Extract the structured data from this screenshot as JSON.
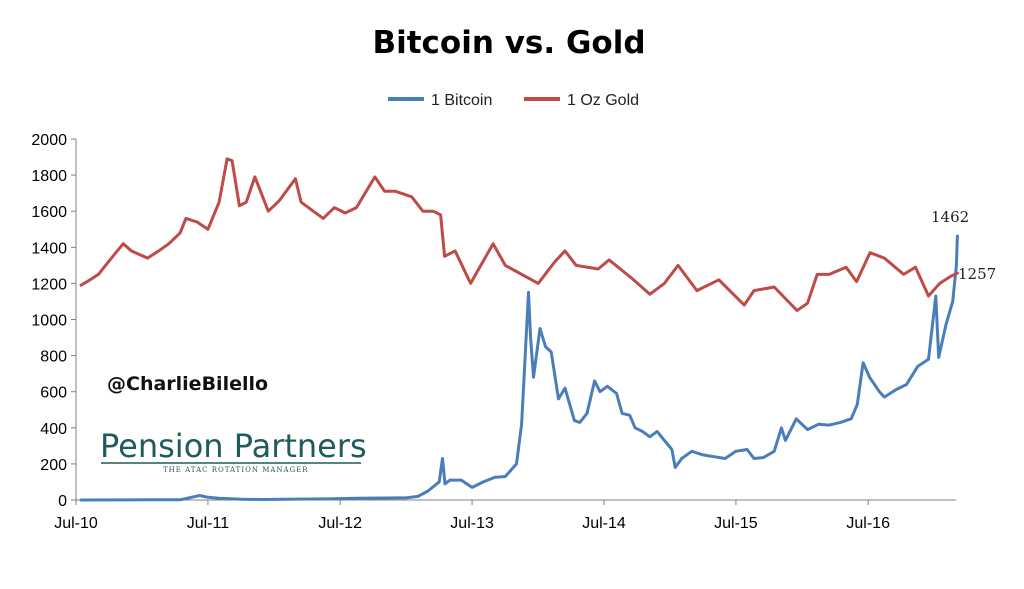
{
  "chart_data": {
    "type": "line",
    "title": "Bitcoin vs. Gold",
    "xlabel": "",
    "ylabel": "",
    "ylim": [
      0,
      2000
    ],
    "yticks": [
      0,
      200,
      400,
      600,
      800,
      1000,
      1200,
      1400,
      1600,
      1800,
      2000
    ],
    "xlim": [
      "2010-07",
      "2017-03"
    ],
    "xticks": [
      "Jul-10",
      "Jul-11",
      "Jul-12",
      "Jul-13",
      "Jul-14",
      "Jul-15",
      "Jul-16"
    ],
    "grid": false,
    "legend_position": "top-center",
    "series": [
      {
        "name": "1 Bitcoin",
        "color": "#4a7ebb",
        "end_label": "1462",
        "points": [
          [
            "2010-07-15",
            0.1
          ],
          [
            "2010-11-01",
            0.3
          ],
          [
            "2011-02-01",
            1
          ],
          [
            "2011-04-15",
            1
          ],
          [
            "2011-06-08",
            25
          ],
          [
            "2011-07-01",
            15
          ],
          [
            "2011-08-01",
            10
          ],
          [
            "2011-10-01",
            4
          ],
          [
            "2011-12-01",
            3
          ],
          [
            "2012-03-01",
            5
          ],
          [
            "2012-06-01",
            6
          ],
          [
            "2012-08-15",
            10
          ],
          [
            "2012-11-01",
            11
          ],
          [
            "2013-01-01",
            13
          ],
          [
            "2013-02-01",
            20
          ],
          [
            "2013-03-01",
            50
          ],
          [
            "2013-04-01",
            100
          ],
          [
            "2013-04-10",
            230
          ],
          [
            "2013-04-17",
            90
          ],
          [
            "2013-05-01",
            110
          ],
          [
            "2013-06-01",
            110
          ],
          [
            "2013-07-01",
            70
          ],
          [
            "2013-08-01",
            100
          ],
          [
            "2013-09-01",
            125
          ],
          [
            "2013-10-01",
            130
          ],
          [
            "2013-11-01",
            200
          ],
          [
            "2013-11-15",
            420
          ],
          [
            "2013-11-25",
            800
          ],
          [
            "2013-12-04",
            1150
          ],
          [
            "2013-12-10",
            900
          ],
          [
            "2013-12-18",
            680
          ],
          [
            "2014-01-05",
            950
          ],
          [
            "2014-01-20",
            850
          ],
          [
            "2014-02-05",
            820
          ],
          [
            "2014-02-25",
            560
          ],
          [
            "2014-03-15",
            620
          ],
          [
            "2014-04-10",
            440
          ],
          [
            "2014-04-25",
            430
          ],
          [
            "2014-05-15",
            480
          ],
          [
            "2014-06-05",
            660
          ],
          [
            "2014-06-20",
            600
          ],
          [
            "2014-07-10",
            630
          ],
          [
            "2014-08-05",
            590
          ],
          [
            "2014-08-20",
            480
          ],
          [
            "2014-09-10",
            470
          ],
          [
            "2014-09-25",
            400
          ],
          [
            "2014-10-15",
            380
          ],
          [
            "2014-11-05",
            350
          ],
          [
            "2014-11-25",
            380
          ],
          [
            "2014-12-15",
            330
          ],
          [
            "2015-01-05",
            280
          ],
          [
            "2015-01-14",
            180
          ],
          [
            "2015-02-01",
            230
          ],
          [
            "2015-03-01",
            270
          ],
          [
            "2015-04-01",
            250
          ],
          [
            "2015-05-01",
            240
          ],
          [
            "2015-06-01",
            230
          ],
          [
            "2015-07-01",
            270
          ],
          [
            "2015-08-01",
            280
          ],
          [
            "2015-08-20",
            230
          ],
          [
            "2015-09-15",
            235
          ],
          [
            "2015-10-15",
            270
          ],
          [
            "2015-11-04",
            400
          ],
          [
            "2015-11-15",
            330
          ],
          [
            "2015-12-15",
            450
          ],
          [
            "2016-01-15",
            390
          ],
          [
            "2016-02-15",
            420
          ],
          [
            "2016-03-15",
            415
          ],
          [
            "2016-04-15",
            430
          ],
          [
            "2016-05-15",
            450
          ],
          [
            "2016-06-01",
            530
          ],
          [
            "2016-06-17",
            760
          ],
          [
            "2016-07-05",
            680
          ],
          [
            "2016-08-01",
            600
          ],
          [
            "2016-08-15",
            570
          ],
          [
            "2016-09-15",
            610
          ],
          [
            "2016-10-15",
            640
          ],
          [
            "2016-11-15",
            740
          ],
          [
            "2016-12-15",
            780
          ],
          [
            "2017-01-04",
            1130
          ],
          [
            "2017-01-12",
            790
          ],
          [
            "2017-02-01",
            970
          ],
          [
            "2017-02-20",
            1100
          ],
          [
            "2017-03-02",
            1300
          ],
          [
            "2017-03-05",
            1462
          ]
        ]
      },
      {
        "name": "1 Oz Gold",
        "color": "#be4b48",
        "end_label": "1257",
        "points": [
          [
            "2010-07-15",
            1190
          ],
          [
            "2010-08-01",
            1210
          ],
          [
            "2010-09-01",
            1250
          ],
          [
            "2010-10-15",
            1360
          ],
          [
            "2010-11-09",
            1420
          ],
          [
            "2010-12-01",
            1380
          ],
          [
            "2011-01-15",
            1340
          ],
          [
            "2011-02-15",
            1380
          ],
          [
            "2011-03-15",
            1420
          ],
          [
            "2011-04-15",
            1480
          ],
          [
            "2011-05-01",
            1560
          ],
          [
            "2011-06-01",
            1540
          ],
          [
            "2011-07-01",
            1500
          ],
          [
            "2011-08-01",
            1650
          ],
          [
            "2011-08-23",
            1890
          ],
          [
            "2011-09-06",
            1880
          ],
          [
            "2011-09-26",
            1630
          ],
          [
            "2011-10-15",
            1650
          ],
          [
            "2011-11-08",
            1790
          ],
          [
            "2011-12-15",
            1600
          ],
          [
            "2012-01-15",
            1660
          ],
          [
            "2012-02-28",
            1780
          ],
          [
            "2012-03-15",
            1650
          ],
          [
            "2012-05-15",
            1560
          ],
          [
            "2012-06-15",
            1620
          ],
          [
            "2012-07-15",
            1590
          ],
          [
            "2012-08-15",
            1620
          ],
          [
            "2012-10-05",
            1790
          ],
          [
            "2012-11-01",
            1710
          ],
          [
            "2012-12-01",
            1710
          ],
          [
            "2013-01-15",
            1680
          ],
          [
            "2013-02-15",
            1600
          ],
          [
            "2013-03-15",
            1600
          ],
          [
            "2013-04-05",
            1580
          ],
          [
            "2013-04-16",
            1350
          ],
          [
            "2013-05-15",
            1380
          ],
          [
            "2013-06-27",
            1200
          ],
          [
            "2013-08-28",
            1420
          ],
          [
            "2013-10-01",
            1300
          ],
          [
            "2013-12-31",
            1200
          ],
          [
            "2014-02-15",
            1320
          ],
          [
            "2014-03-15",
            1380
          ],
          [
            "2014-04-15",
            1300
          ],
          [
            "2014-06-15",
            1280
          ],
          [
            "2014-07-15",
            1330
          ],
          [
            "2014-09-15",
            1230
          ],
          [
            "2014-11-05",
            1140
          ],
          [
            "2014-12-15",
            1200
          ],
          [
            "2015-01-22",
            1300
          ],
          [
            "2015-03-15",
            1160
          ],
          [
            "2015-05-15",
            1220
          ],
          [
            "2015-07-24",
            1080
          ],
          [
            "2015-08-20",
            1160
          ],
          [
            "2015-10-15",
            1180
          ],
          [
            "2015-12-17",
            1050
          ],
          [
            "2016-01-15",
            1090
          ],
          [
            "2016-02-11",
            1250
          ],
          [
            "2016-03-15",
            1250
          ],
          [
            "2016-05-01",
            1290
          ],
          [
            "2016-05-30",
            1210
          ],
          [
            "2016-07-06",
            1370
          ],
          [
            "2016-08-15",
            1340
          ],
          [
            "2016-10-07",
            1250
          ],
          [
            "2016-11-09",
            1290
          ],
          [
            "2016-12-15",
            1130
          ],
          [
            "2017-01-15",
            1200
          ],
          [
            "2017-02-15",
            1240
          ],
          [
            "2017-03-05",
            1257
          ]
        ]
      }
    ],
    "annotations": [
      "1462",
      "1257"
    ]
  },
  "watermark": {
    "handle": "@CharlieBilello",
    "logo_name": "Pension Partners",
    "logo_tagline": "THE ATAC ROTATION MANAGER"
  }
}
